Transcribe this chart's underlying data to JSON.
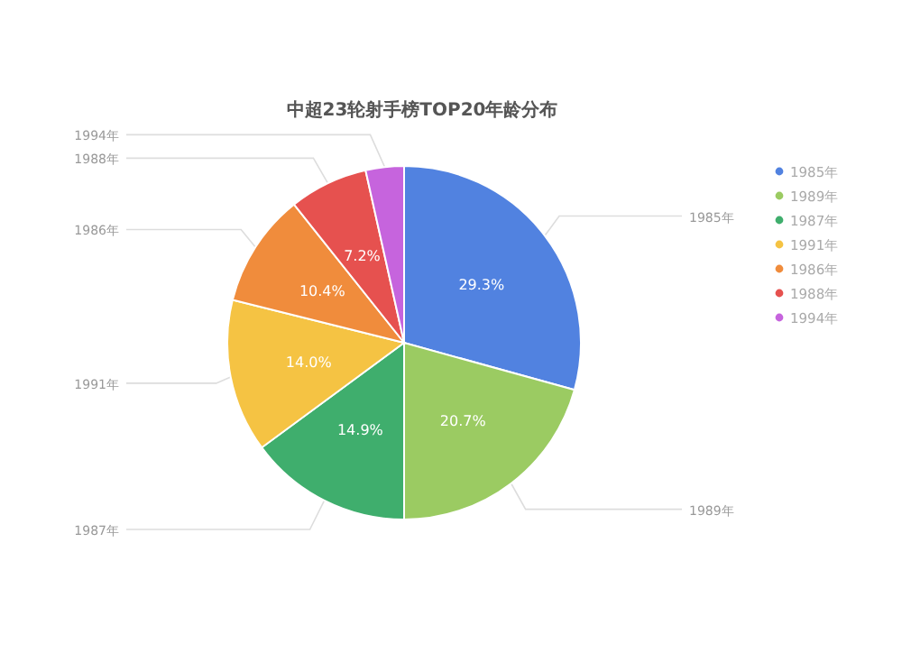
{
  "chart_data": {
    "type": "pie",
    "title": "中超23轮射手榜TOP20年龄分布",
    "categories": [
      "1985年",
      "1989年",
      "1987年",
      "1991年",
      "1986年",
      "1988年",
      "1994年"
    ],
    "values": [
      29.3,
      20.7,
      14.9,
      14.0,
      10.4,
      7.2,
      3.5
    ],
    "value_labels": [
      "29.3%",
      "20.7%",
      "14.9%",
      "14.0%",
      "10.4%",
      "7.2%",
      null
    ],
    "colors": [
      "#5182e0",
      "#9bcb62",
      "#3fae6d",
      "#f5c343",
      "#f08c3c",
      "#e6514f",
      "#c664dd"
    ],
    "legend": "right"
  }
}
